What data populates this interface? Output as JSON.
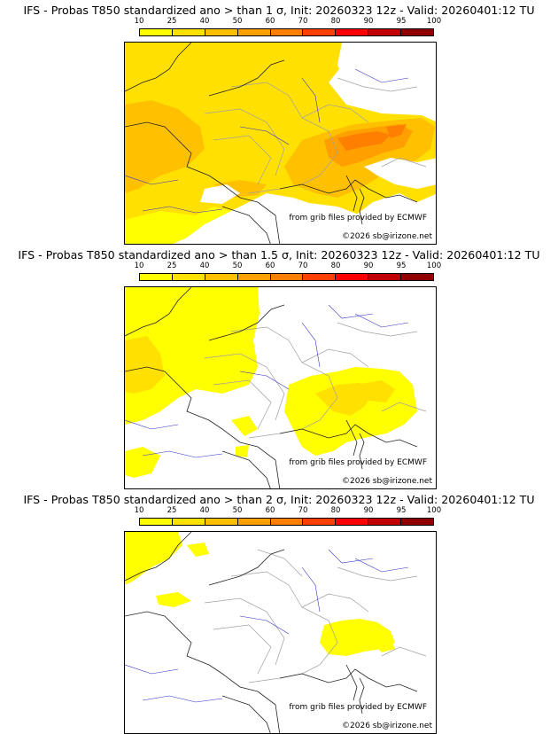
{
  "colorbar": {
    "ticks": [
      "10",
      "25",
      "40",
      "50",
      "60",
      "70",
      "80",
      "90",
      "95",
      "100"
    ],
    "colors": [
      "#ffff00",
      "#ffe000",
      "#ffc000",
      "#ffa000",
      "#ff8000",
      "#ff4000",
      "#ff0000",
      "#c00000",
      "#900000",
      "#600000"
    ]
  },
  "panels": [
    {
      "title": "IFS - Probas T850  standardized ano > than 1 σ, Init: 20260323 12z - Valid: 20260401:12 TU",
      "source": "from grib files provided by ECMWF",
      "copyright": "©2026 sb@irizone.net"
    },
    {
      "title": "IFS - Probas T850  standardized ano > than 1.5 σ, Init: 20260323 12z - Valid: 20260401:12 TU",
      "source": "from grib files provided by ECMWF",
      "copyright": "©2026 sb@irizone.net"
    },
    {
      "title": "IFS - Probas T850  standardized ano > than 2 σ, Init: 20260323 12z - Valid: 20260401:12 TU",
      "source": "from grib files provided by ECMWF",
      "copyright": "©2026 sb@irizone.net"
    }
  ]
}
